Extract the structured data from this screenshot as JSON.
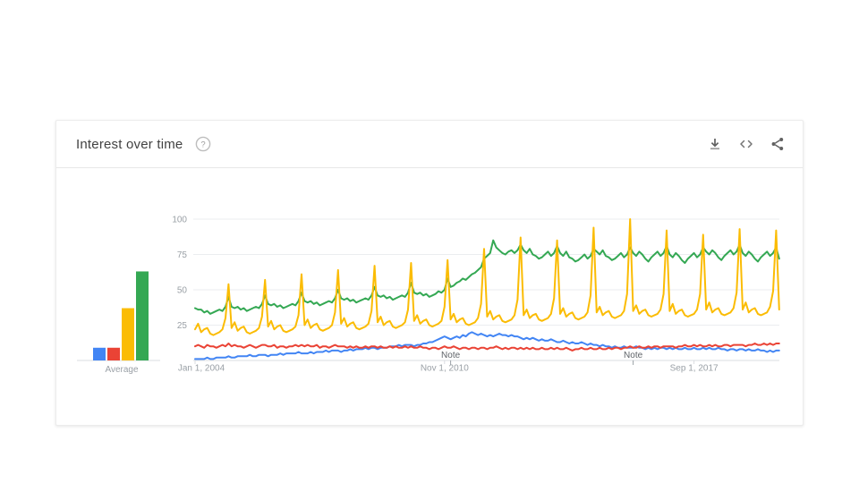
{
  "header": {
    "title": "Interest over time",
    "help_icon": "question-mark-circle-icon",
    "actions": [
      "download-icon",
      "embed-icon",
      "share-icon"
    ]
  },
  "chart_data": {
    "type": "line",
    "title": "Interest over time",
    "x_unit": "months",
    "x_start": "Jan 2004",
    "x_end": "Jan 2020",
    "ylim": [
      0,
      100
    ],
    "yticks": [
      25,
      50,
      75,
      100
    ],
    "grid": "horizontal",
    "xlabels": [
      {
        "label": "Jan 1, 2004",
        "month": 0
      },
      {
        "label": "Nov 1, 2010",
        "month": 82
      },
      {
        "label": "Sep 1, 2017",
        "month": 164
      }
    ],
    "notes": [
      {
        "label": "Note",
        "month": 84
      },
      {
        "label": "Note",
        "month": 144
      }
    ],
    "average_label": "Average",
    "series": [
      {
        "name": "blue",
        "color": "#4285f4",
        "average": 9,
        "values": [
          1,
          1,
          1,
          1,
          2,
          1,
          1,
          2,
          2,
          2,
          2,
          3,
          2,
          2,
          3,
          3,
          3,
          3,
          4,
          3,
          3,
          4,
          4,
          4,
          3,
          4,
          4,
          4,
          5,
          4,
          5,
          5,
          5,
          5,
          6,
          5,
          5,
          5,
          6,
          5,
          6,
          6,
          6,
          7,
          6,
          7,
          7,
          7,
          6,
          7,
          7,
          8,
          7,
          8,
          8,
          8,
          9,
          8,
          9,
          9,
          8,
          9,
          9,
          9,
          10,
          10,
          10,
          11,
          10,
          11,
          11,
          11,
          10,
          11,
          11,
          12,
          12,
          13,
          13,
          14,
          15,
          16,
          17,
          16,
          15,
          16,
          17,
          16,
          18,
          17,
          19,
          20,
          19,
          18,
          19,
          18,
          17,
          18,
          17,
          18,
          19,
          18,
          18,
          17,
          18,
          17,
          17,
          16,
          15,
          16,
          15,
          16,
          15,
          14,
          15,
          14,
          14,
          15,
          14,
          13,
          13,
          14,
          13,
          12,
          13,
          12,
          12,
          13,
          12,
          11,
          12,
          11,
          11,
          10,
          11,
          10,
          10,
          9,
          10,
          9,
          9,
          10,
          9,
          9,
          9,
          10,
          9,
          9,
          8,
          9,
          8,
          9,
          8,
          9,
          9,
          8,
          9,
          8,
          9,
          8,
          8,
          9,
          8,
          8,
          9,
          8,
          8,
          9,
          8,
          9,
          8,
          8,
          9,
          8,
          8,
          7,
          8,
          8,
          7,
          8,
          8,
          7,
          8,
          7,
          7,
          8,
          7,
          7,
          6,
          7,
          6,
          7,
          7
        ]
      },
      {
        "name": "red",
        "color": "#ea4335",
        "average": 9,
        "values": [
          10,
          11,
          10,
          9,
          11,
          10,
          10,
          9,
          10,
          11,
          10,
          12,
          10,
          11,
          10,
          10,
          9,
          10,
          11,
          10,
          9,
          10,
          11,
          11,
          10,
          10,
          11,
          9,
          10,
          10,
          9,
          10,
          10,
          11,
          10,
          11,
          10,
          11,
          10,
          10,
          11,
          9,
          10,
          10,
          9,
          10,
          11,
          10,
          10,
          10,
          9,
          10,
          9,
          10,
          9,
          9,
          10,
          9,
          10,
          10,
          9,
          10,
          9,
          9,
          10,
          9,
          10,
          9,
          9,
          10,
          9,
          10,
          9,
          9,
          10,
          9,
          9,
          8,
          9,
          9,
          8,
          9,
          10,
          9,
          9,
          10,
          9,
          8,
          9,
          9,
          8,
          9,
          9,
          8,
          9,
          9,
          8,
          9,
          9,
          10,
          9,
          8,
          9,
          8,
          9,
          9,
          8,
          9,
          8,
          9,
          8,
          9,
          8,
          8,
          9,
          8,
          8,
          9,
          8,
          9,
          8,
          8,
          9,
          8,
          7,
          8,
          8,
          9,
          8,
          8,
          9,
          8,
          8,
          9,
          8,
          8,
          9,
          8,
          9,
          9,
          8,
          9,
          9,
          10,
          9,
          9,
          10,
          9,
          9,
          10,
          9,
          10,
          10,
          9,
          10,
          10,
          10,
          10,
          9,
          10,
          10,
          11,
          10,
          10,
          11,
          10,
          11,
          10,
          10,
          11,
          10,
          11,
          10,
          10,
          11,
          11,
          10,
          11,
          11,
          11,
          11,
          10,
          11,
          11,
          12,
          11,
          11,
          12,
          11,
          12,
          11,
          12,
          12
        ]
      },
      {
        "name": "yellow",
        "color": "#fbbc04",
        "average": 37,
        "values": [
          22,
          26,
          20,
          22,
          23,
          19,
          18,
          19,
          20,
          22,
          30,
          54,
          23,
          27,
          21,
          23,
          24,
          20,
          19,
          20,
          21,
          23,
          31,
          57,
          24,
          28,
          22,
          24,
          25,
          21,
          20,
          21,
          22,
          24,
          32,
          61,
          25,
          29,
          23,
          25,
          26,
          22,
          21,
          22,
          23,
          25,
          34,
          64,
          26,
          30,
          24,
          26,
          27,
          23,
          22,
          23,
          24,
          26,
          35,
          67,
          27,
          31,
          25,
          27,
          28,
          24,
          23,
          24,
          25,
          27,
          36,
          69,
          28,
          32,
          26,
          28,
          29,
          25,
          24,
          25,
          26,
          28,
          38,
          71,
          29,
          33,
          27,
          29,
          30,
          26,
          25,
          26,
          27,
          30,
          40,
          79,
          31,
          35,
          29,
          31,
          32,
          28,
          27,
          28,
          29,
          32,
          43,
          87,
          32,
          36,
          30,
          32,
          33,
          29,
          28,
          29,
          30,
          33,
          44,
          85,
          33,
          37,
          31,
          33,
          34,
          30,
          29,
          30,
          31,
          34,
          46,
          94,
          34,
          38,
          32,
          34,
          35,
          31,
          30,
          31,
          32,
          35,
          47,
          100,
          35,
          39,
          33,
          35,
          36,
          32,
          31,
          32,
          33,
          36,
          47,
          92,
          35,
          40,
          33,
          35,
          36,
          32,
          31,
          32,
          33,
          36,
          47,
          89,
          36,
          41,
          34,
          36,
          37,
          33,
          32,
          33,
          34,
          37,
          48,
          93,
          36,
          41,
          34,
          36,
          37,
          33,
          32,
          33,
          34,
          38,
          49,
          92,
          36
        ]
      },
      {
        "name": "green",
        "color": "#34a853",
        "average": 63,
        "values": [
          37,
          36,
          36,
          34,
          35,
          33,
          34,
          35,
          36,
          35,
          38,
          45,
          38,
          37,
          38,
          36,
          37,
          35,
          36,
          37,
          38,
          37,
          40,
          46,
          40,
          39,
          40,
          38,
          39,
          37,
          38,
          39,
          40,
          39,
          42,
          48,
          42,
          41,
          42,
          40,
          41,
          39,
          40,
          41,
          42,
          41,
          44,
          50,
          44,
          43,
          44,
          42,
          43,
          41,
          42,
          43,
          44,
          43,
          46,
          52,
          46,
          45,
          46,
          44,
          45,
          43,
          44,
          45,
          46,
          45,
          48,
          55,
          48,
          47,
          48,
          46,
          47,
          45,
          46,
          47,
          49,
          48,
          50,
          58,
          52,
          53,
          55,
          56,
          58,
          57,
          59,
          61,
          62,
          64,
          66,
          72,
          74,
          76,
          85,
          80,
          78,
          76,
          75,
          77,
          78,
          76,
          78,
          82,
          78,
          76,
          79,
          75,
          74,
          72,
          73,
          75,
          77,
          74,
          76,
          81,
          76,
          74,
          77,
          73,
          72,
          70,
          71,
          73,
          75,
          72,
          74,
          79,
          77,
          75,
          78,
          74,
          73,
          71,
          72,
          74,
          76,
          73,
          75,
          80,
          76,
          74,
          77,
          75,
          72,
          70,
          73,
          75,
          77,
          74,
          76,
          81,
          75,
          73,
          76,
          74,
          71,
          69,
          72,
          74,
          76,
          73,
          75,
          80,
          77,
          75,
          78,
          76,
          73,
          71,
          74,
          76,
          78,
          75,
          77,
          82,
          76,
          74,
          77,
          75,
          72,
          70,
          73,
          75,
          77,
          74,
          76,
          80,
          72
        ]
      }
    ]
  }
}
